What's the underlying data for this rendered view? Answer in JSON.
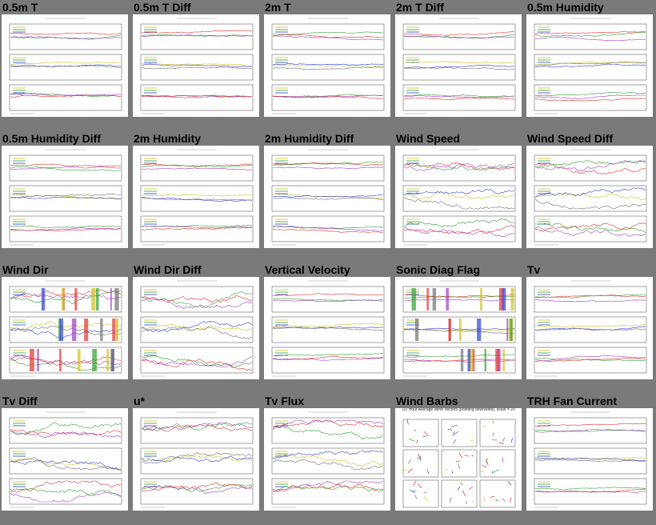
{
  "panels": [
    {
      "title": "0.5m T",
      "kind": "plot"
    },
    {
      "title": "0.5m T Diff",
      "kind": "plot"
    },
    {
      "title": "2m T",
      "kind": "plot"
    },
    {
      "title": "2m T Diff",
      "kind": "plot"
    },
    {
      "title": "0.5m Humidity",
      "kind": "plot"
    },
    {
      "title": "0.5m Humidity Diff",
      "kind": "plot"
    },
    {
      "title": "2m Humidity",
      "kind": "plot"
    },
    {
      "title": "2m Humidity Diff",
      "kind": "plot"
    },
    {
      "title": "Wind Speed",
      "kind": "plot"
    },
    {
      "title": "Wind Speed Diff",
      "kind": "plot"
    },
    {
      "title": "Wind Dir",
      "kind": "plot"
    },
    {
      "title": "Wind Dir Diff",
      "kind": "plot"
    },
    {
      "title": "Vertical Velocity",
      "kind": "plot"
    },
    {
      "title": "Sonic Diag Flag",
      "kind": "plot"
    },
    {
      "title": "Tv",
      "kind": "plot"
    },
    {
      "title": "Tv Diff",
      "kind": "plot"
    },
    {
      "title": "u*",
      "kind": "plot"
    },
    {
      "title": "Tv Flux",
      "kind": "plot"
    },
    {
      "title": "Wind Barbs",
      "kind": "barbs",
      "caption": "1/2 Hour Average Wind Vectors (pointing downwind), scale = 20"
    },
    {
      "title": "TRH Fan Current",
      "kind": "plot"
    }
  ],
  "colors": {
    "background": "#7a7a7a",
    "plot_bg": "#ffffff",
    "series": [
      "#e03030",
      "#d0c020",
      "#30a030",
      "#3040d0",
      "#a040c0",
      "#707070"
    ]
  }
}
